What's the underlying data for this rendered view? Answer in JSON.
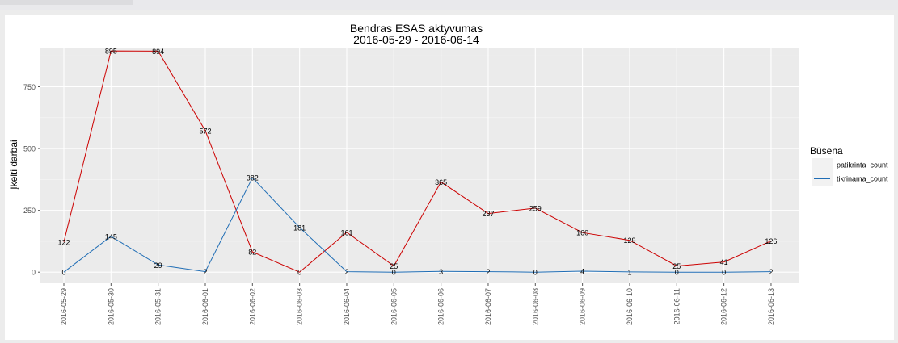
{
  "chart_data": {
    "type": "line",
    "title": "Bendras ESAS aktyvumas",
    "subtitle": "2016-05-29 - 2016-06-14",
    "xlabel": "",
    "ylabel": "Įkelti darbai",
    "categories": [
      "2016-05-29",
      "2016-05-30",
      "2016-05-31",
      "2016-06-01",
      "2016-06-02",
      "2016-06-03",
      "2016-06-04",
      "2016-06-05",
      "2016-06-06",
      "2016-06-07",
      "2016-06-08",
      "2016-06-09",
      "2016-06-10",
      "2016-06-11",
      "2016-06-12",
      "2016-06-13"
    ],
    "ylim": [
      -45,
      905
    ],
    "yticks": [
      0,
      250,
      500,
      750
    ],
    "grid": true,
    "legend_title": "Būsena",
    "legend_position": "right",
    "series": [
      {
        "name": "patikrinta_count",
        "color": "#cc0000",
        "values": [
          122,
          895,
          894,
          572,
          82,
          0,
          161,
          25,
          365,
          237,
          259,
          160,
          129,
          25,
          41,
          126
        ]
      },
      {
        "name": "tikrinama_count",
        "color": "#1f6db5",
        "values": [
          0,
          145,
          29,
          2,
          382,
          181,
          2,
          0,
          3,
          2,
          0,
          4,
          1,
          0,
          0,
          2
        ]
      }
    ]
  }
}
